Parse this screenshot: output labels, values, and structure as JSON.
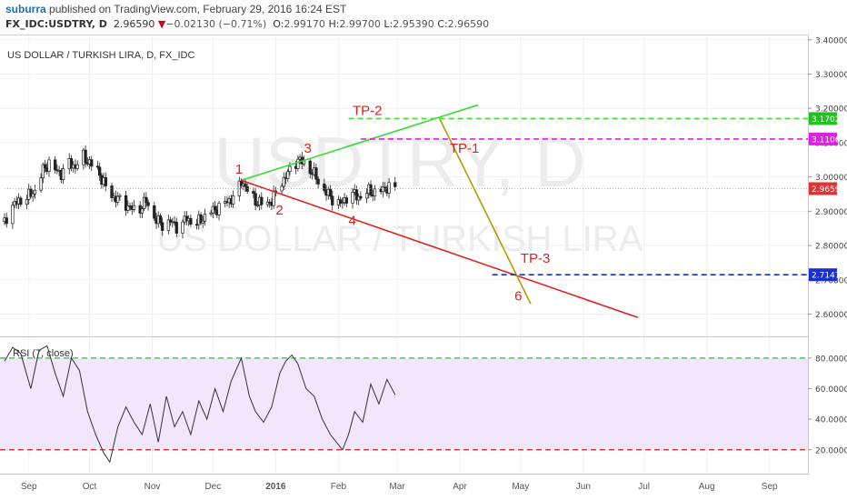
{
  "header": {
    "username": "suburra",
    "published_text": " published on TradingView.com, February 29, 2016 16:24 EST",
    "symbol": "FX_IDC:USDTRY, D",
    "last": "2.96590",
    "change_arrow": "▼",
    "change": "−0.02130 (−0.71%)",
    "o_label": "O:",
    "o": "2.99170",
    "h_label": "H:",
    "h": "2.99700",
    "l_label": "L:",
    "l": "2.95390",
    "c_label": "C:",
    "c": "2.96590"
  },
  "chart_data": [
    {
      "type": "candlestick",
      "title": "US DOLLAR / TURKISH LIRA, D, FX_IDC",
      "watermark_symbol": "USDTRY, D",
      "watermark_name": "US DOLLAR / TURKISH LIRA",
      "x_ticks": [
        "Sep",
        "Oct",
        "Nov",
        "Dec",
        "2016",
        "Feb",
        "Mar",
        "Apr",
        "May",
        "Jun",
        "Jul",
        "Aug",
        "Sep"
      ],
      "y_ticks": [
        "3.40000",
        "3.30000",
        "3.20000",
        "3.10000",
        "3.00000",
        "2.90000",
        "2.80000",
        "2.70000",
        "2.60000"
      ],
      "ylim": [
        2.535,
        3.41
      ],
      "price_labels": [
        {
          "text": "3.17027",
          "value": 3.17027,
          "color": "#22c022"
        },
        {
          "text": "3.11067",
          "value": 3.11067,
          "color": "#e020e0"
        },
        {
          "text": "2.96590",
          "value": 2.9659,
          "color": "#e33030"
        },
        {
          "text": "2.71472",
          "value": 2.71472,
          "color": "#1a2fd0"
        }
      ],
      "close_path": [
        [
          "2015-08-20",
          2.87
        ],
        [
          "2015-08-23",
          2.91
        ],
        [
          "2015-08-27",
          2.93
        ],
        [
          "2015-08-31",
          2.94
        ],
        [
          "2015-09-04",
          2.96
        ],
        [
          "2015-09-08",
          3.02
        ],
        [
          "2015-09-11",
          3.04
        ],
        [
          "2015-09-14",
          3.02
        ],
        [
          "2015-09-17",
          3.01
        ],
        [
          "2015-09-21",
          3.04
        ],
        [
          "2015-09-24",
          3.03
        ],
        [
          "2015-09-28",
          3.06
        ],
        [
          "2015-10-01",
          3.04
        ],
        [
          "2015-10-05",
          3.02
        ],
        [
          "2015-10-09",
          2.97
        ],
        [
          "2015-10-13",
          2.94
        ],
        [
          "2015-10-17",
          2.93
        ],
        [
          "2015-10-21",
          2.91
        ],
        [
          "2015-10-25",
          2.9
        ],
        [
          "2015-10-29",
          2.93
        ],
        [
          "2015-11-02",
          2.88
        ],
        [
          "2015-11-06",
          2.86
        ],
        [
          "2015-11-10",
          2.87
        ],
        [
          "2015-11-14",
          2.85
        ],
        [
          "2015-11-18",
          2.88
        ],
        [
          "2015-11-22",
          2.86
        ],
        [
          "2015-11-26",
          2.88
        ],
        [
          "2015-11-30",
          2.9
        ],
        [
          "2015-12-04",
          2.91
        ],
        [
          "2015-12-08",
          2.93
        ],
        [
          "2015-12-12",
          2.94
        ],
        [
          "2015-12-15",
          2.99
        ],
        [
          "2015-12-18",
          2.96
        ],
        [
          "2015-12-22",
          2.93
        ],
        [
          "2015-12-26",
          2.92
        ],
        [
          "2015-12-30",
          2.93
        ],
        [
          "2016-01-03",
          2.98
        ],
        [
          "2016-01-06",
          3.0
        ],
        [
          "2016-01-09",
          3.03
        ],
        [
          "2016-01-12",
          3.05
        ],
        [
          "2016-01-15",
          3.04
        ],
        [
          "2016-01-18",
          3.02
        ],
        [
          "2016-01-21",
          3.0
        ],
        [
          "2016-01-24",
          2.96
        ],
        [
          "2016-01-27",
          2.95
        ],
        [
          "2016-01-30",
          2.93
        ],
        [
          "2016-02-02",
          2.92
        ],
        [
          "2016-02-05",
          2.94
        ],
        [
          "2016-02-08",
          2.95
        ],
        [
          "2016-02-12",
          2.94
        ],
        [
          "2016-02-16",
          2.96
        ],
        [
          "2016-02-20",
          2.95
        ],
        [
          "2016-02-24",
          2.97
        ],
        [
          "2016-02-29",
          2.9659
        ]
      ],
      "drawings": [
        {
          "name": "green-trendline",
          "color": "#33dd33",
          "from": [
            "2015-12-15",
            2.99
          ],
          "to": [
            "2016-04-10",
            3.21
          ]
        },
        {
          "name": "red-trendline",
          "color": "#e02020",
          "from": [
            "2015-12-15",
            2.99
          ],
          "to": [
            "2016-06-28",
            2.59
          ]
        },
        {
          "name": "olive-projection",
          "color": "#b39a00",
          "from": [
            "2016-03-22",
            3.17
          ],
          "to": [
            "2016-05-06",
            2.63
          ]
        },
        {
          "name": "tp2-level",
          "color": "#44dd33",
          "dashed": true,
          "value": 3.17027,
          "from": "2016-02-06"
        },
        {
          "name": "tp1-level",
          "color": "#e020e0",
          "dashed": true,
          "value": 3.11067,
          "from": "2016-02-12"
        },
        {
          "name": "tp3-level",
          "color": "#1a2fd0",
          "dashed": true,
          "value": 2.71472,
          "from": "2016-04-17"
        },
        {
          "name": "last-price-line",
          "color": "#e08080",
          "dotted": true,
          "value": 2.9659,
          "from": "2015-08-20"
        }
      ],
      "labels": [
        {
          "text": "1",
          "at": [
            "2015-12-12",
            3.01
          ],
          "color": "#e02020"
        },
        {
          "text": "2",
          "at": [
            "2016-01-01",
            2.89
          ],
          "color": "#e02020"
        },
        {
          "text": "3",
          "at": [
            "2016-01-15",
            3.07
          ],
          "color": "#e02020"
        },
        {
          "text": "4",
          "at": [
            "2016-02-06",
            2.86
          ],
          "color": "#e02020"
        },
        {
          "text": "6",
          "at": [
            "2016-04-28",
            2.64
          ],
          "color": "#e02020"
        },
        {
          "text": "TP-2",
          "at": [
            "2016-02-08",
            3.18
          ],
          "color": "#e02020"
        },
        {
          "text": "TP-1",
          "at": [
            "2016-03-27",
            3.07
          ],
          "color": "#e02020"
        },
        {
          "text": "TP-3",
          "at": [
            "2016-05-01",
            2.75
          ],
          "color": "#e02020"
        }
      ]
    },
    {
      "type": "line",
      "title": "RSI (7, close)",
      "y_ticks": [
        "80.0000",
        "60.0000",
        "40.0000",
        "20.0000"
      ],
      "ylim": [
        5,
        93
      ],
      "bands": {
        "upper": 80,
        "lower": 20,
        "upper_color": "#22cc22",
        "lower_color": "#e02020",
        "fill": "#f1e6fb"
      },
      "series": [
        {
          "values": [
            [
              "2015-08-20",
              78
            ],
            [
              "2015-08-24",
              87
            ],
            [
              "2015-08-28",
              83
            ],
            [
              "2015-09-02",
              60
            ],
            [
              "2015-09-06",
              85
            ],
            [
              "2015-09-10",
              88
            ],
            [
              "2015-09-14",
              70
            ],
            [
              "2015-09-18",
              55
            ],
            [
              "2015-09-22",
              80
            ],
            [
              "2015-09-26",
              72
            ],
            [
              "2015-09-30",
              45
            ],
            [
              "2015-10-04",
              30
            ],
            [
              "2015-10-08",
              18
            ],
            [
              "2015-10-11",
              12
            ],
            [
              "2015-10-15",
              35
            ],
            [
              "2015-10-19",
              48
            ],
            [
              "2015-10-23",
              38
            ],
            [
              "2015-10-27",
              30
            ],
            [
              "2015-10-31",
              50
            ],
            [
              "2015-11-04",
              25
            ],
            [
              "2015-11-08",
              55
            ],
            [
              "2015-11-12",
              35
            ],
            [
              "2015-11-16",
              45
            ],
            [
              "2015-11-20",
              30
            ],
            [
              "2015-11-24",
              52
            ],
            [
              "2015-11-28",
              40
            ],
            [
              "2015-12-02",
              60
            ],
            [
              "2015-12-06",
              45
            ],
            [
              "2015-12-10",
              65
            ],
            [
              "2015-12-15",
              80
            ],
            [
              "2015-12-19",
              55
            ],
            [
              "2015-12-22",
              45
            ],
            [
              "2015-12-26",
              38
            ],
            [
              "2015-12-30",
              48
            ],
            [
              "2016-01-03",
              70
            ],
            [
              "2016-01-06",
              78
            ],
            [
              "2016-01-09",
              82
            ],
            [
              "2016-01-12",
              76
            ],
            [
              "2016-01-16",
              60
            ],
            [
              "2016-01-20",
              55
            ],
            [
              "2016-01-24",
              40
            ],
            [
              "2016-01-28",
              30
            ],
            [
              "2016-01-31",
              25
            ],
            [
              "2016-02-03",
              20
            ],
            [
              "2016-02-06",
              30
            ],
            [
              "2016-02-09",
              45
            ],
            [
              "2016-02-13",
              38
            ],
            [
              "2016-02-17",
              63
            ],
            [
              "2016-02-21",
              50
            ],
            [
              "2016-02-25",
              66
            ],
            [
              "2016-02-29",
              56
            ]
          ]
        }
      ]
    }
  ]
}
